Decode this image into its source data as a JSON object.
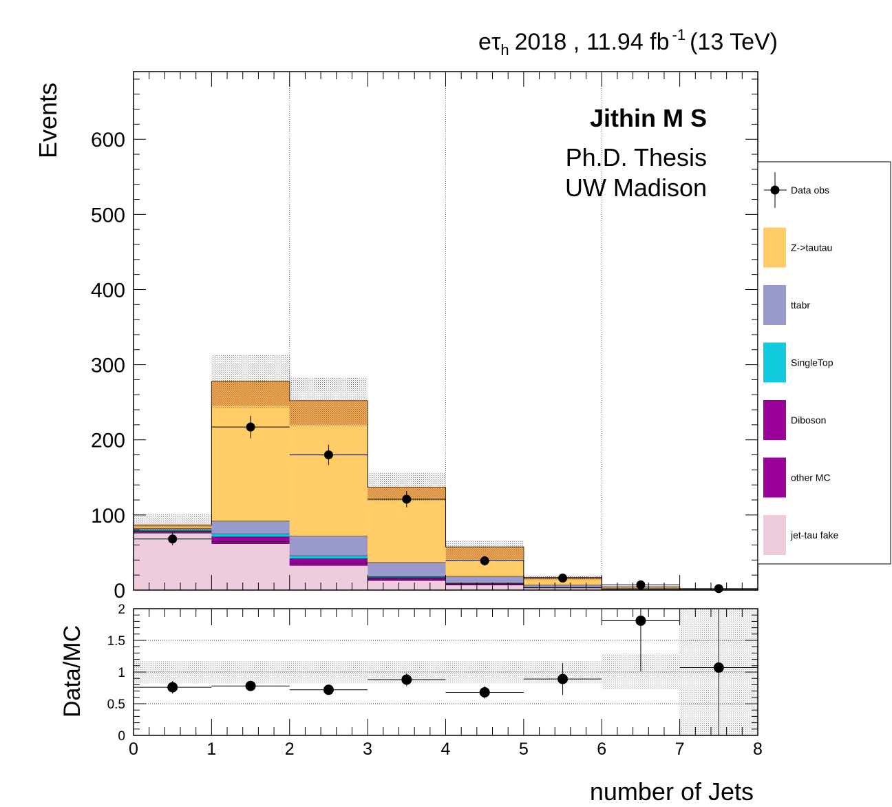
{
  "header": {
    "channel_e": "e",
    "channel_tau": "τ",
    "channel_sub": "h",
    "year": "2018 ,",
    "lumi": "11.94 fb",
    "lumi_exp": "-1",
    "energy": "(13 TeV)"
  },
  "labels": {
    "author": "Jithin M S",
    "line1": "Ph.D. Thesis",
    "line2": "UW Madison"
  },
  "colors": {
    "ztt": "#ffcc66",
    "ttbar": "#9999cc",
    "singletop": "#12cadd",
    "diboson": "#990099",
    "othermc": "#990099",
    "fake": "#eeccdd",
    "data": "#000000",
    "uncertainty": "#999999"
  },
  "chart_data": [
    {
      "type": "bar",
      "stacked": true,
      "xlabel": "number of Jets",
      "ylabel": "Events",
      "xlim": [
        0,
        8
      ],
      "ylim": [
        0,
        690
      ],
      "yticks": [
        "0",
        "100",
        "200",
        "300",
        "400",
        "500",
        "600"
      ],
      "grid": "vertical dotted lines at x = 2, 4, 6",
      "bin_edges": [
        0,
        1,
        2,
        3,
        4,
        5,
        6,
        7,
        8
      ],
      "series": [
        {
          "name": "jet-tau fake",
          "color_key": "fake",
          "values": [
            76,
            62,
            33,
            13,
            7,
            3,
            1,
            0.3
          ]
        },
        {
          "name": "other MC",
          "color_key": "othermc",
          "values": [
            2,
            3,
            3,
            2,
            1,
            0.3,
            0.1,
            0.05
          ]
        },
        {
          "name": "Diboson",
          "color_key": "diboson",
          "values": [
            1,
            6,
            6,
            2,
            1,
            0.3,
            0.1,
            0.05
          ]
        },
        {
          "name": "SingleTop",
          "color_key": "singletop",
          "values": [
            1,
            4,
            4,
            1,
            0.5,
            0.2,
            0.1,
            0.05
          ]
        },
        {
          "name": "ttabr",
          "color_key": "ttbar",
          "values": [
            2,
            17,
            26,
            19,
            9,
            3,
            1,
            0.3
          ]
        },
        {
          "name": "Z->tautau",
          "color_key": "ztt",
          "values": [
            4,
            186,
            180,
            100,
            39,
            10,
            2,
            0.3
          ]
        }
      ],
      "uncertainty": {
        "hatched_lower": [
          84,
          245,
          220,
          120,
          40,
          14,
          3,
          0.5
        ],
        "hatched_upper": [
          88,
          278,
          252,
          137,
          57,
          17,
          4,
          1
        ],
        "outer_lower": [
          76,
          242,
          218,
          118,
          48,
          13,
          3,
          0.5
        ],
        "outer_upper": [
          101,
          313,
          283,
          156,
          66,
          20,
          5,
          1.5
        ]
      },
      "data": {
        "name": "Data obs",
        "x": [
          0.5,
          1.5,
          2.5,
          3.5,
          4.5,
          5.5,
          6.5,
          7.5
        ],
        "y": [
          68,
          217,
          180,
          121,
          39,
          16,
          7,
          2
        ],
        "yerr": [
          8.5,
          15,
          13.5,
          11,
          6.3,
          4,
          2.6,
          1.4
        ]
      },
      "legend": {
        "placement": "right, outside plot",
        "entries": [
          "Data obs",
          "Z->tautau",
          "ttabr",
          "SingleTop",
          "Diboson",
          "other MC",
          "jet-tau fake"
        ]
      }
    },
    {
      "type": "scatter",
      "xlabel": "number of Jets",
      "ylabel": "Data/MC",
      "xlim": [
        0,
        8
      ],
      "ylim": [
        0,
        2
      ],
      "xticks": [
        "0",
        "1",
        "2",
        "3",
        "4",
        "5",
        "6",
        "7",
        "8"
      ],
      "yticks": [
        "0",
        "0.5",
        "1",
        "1.5",
        "2"
      ],
      "grid": "horizontal dotted lines at y = 0.5, 1, 1.5",
      "x": [
        0.5,
        1.5,
        2.5,
        3.5,
        4.5,
        5.5,
        6.5,
        7.5
      ],
      "y": [
        0.76,
        0.78,
        0.72,
        0.88,
        0.68,
        0.89,
        1.81,
        1.07
      ],
      "yerr": [
        0.1,
        0.07,
        0.07,
        0.1,
        0.1,
        0.25,
        0.8,
        1.2
      ],
      "band_lower": [
        0.82,
        0.82,
        0.82,
        0.82,
        0.82,
        0.82,
        0.73,
        0
      ],
      "band_upper": [
        1.18,
        1.18,
        1.18,
        1.18,
        1.18,
        1.18,
        1.29,
        2
      ]
    }
  ]
}
